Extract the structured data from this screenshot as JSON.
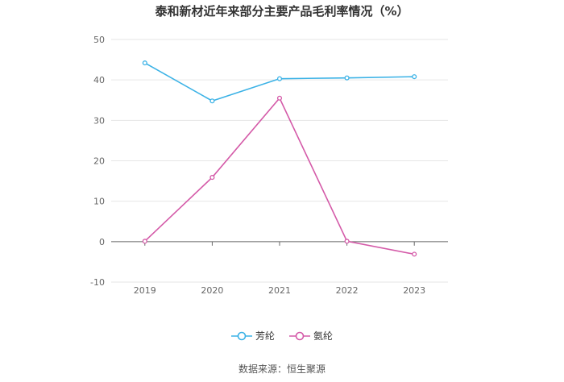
{
  "title": "泰和新材近年来部分主要产品毛利率情况（%）",
  "source": "数据来源：恒生聚源",
  "chart_data": {
    "type": "line",
    "title": "泰和新材近年来部分主要产品毛利率情况（%）",
    "xlabel": "",
    "ylabel": "",
    "categories": [
      "2019",
      "2020",
      "2021",
      "2022",
      "2023"
    ],
    "ylim": [
      -10,
      50
    ],
    "yticks": [
      50,
      40,
      30,
      20,
      10,
      0,
      -10
    ],
    "grid": true,
    "legend_position": "bottom",
    "series": [
      {
        "name": "芳纶",
        "color": "#3bb2e6",
        "values": [
          44.2,
          34.8,
          40.3,
          40.5,
          40.8
        ]
      },
      {
        "name": "氨纶",
        "color": "#d45aa8",
        "values": [
          0.1,
          15.9,
          35.5,
          0.1,
          -3.1
        ]
      }
    ]
  }
}
